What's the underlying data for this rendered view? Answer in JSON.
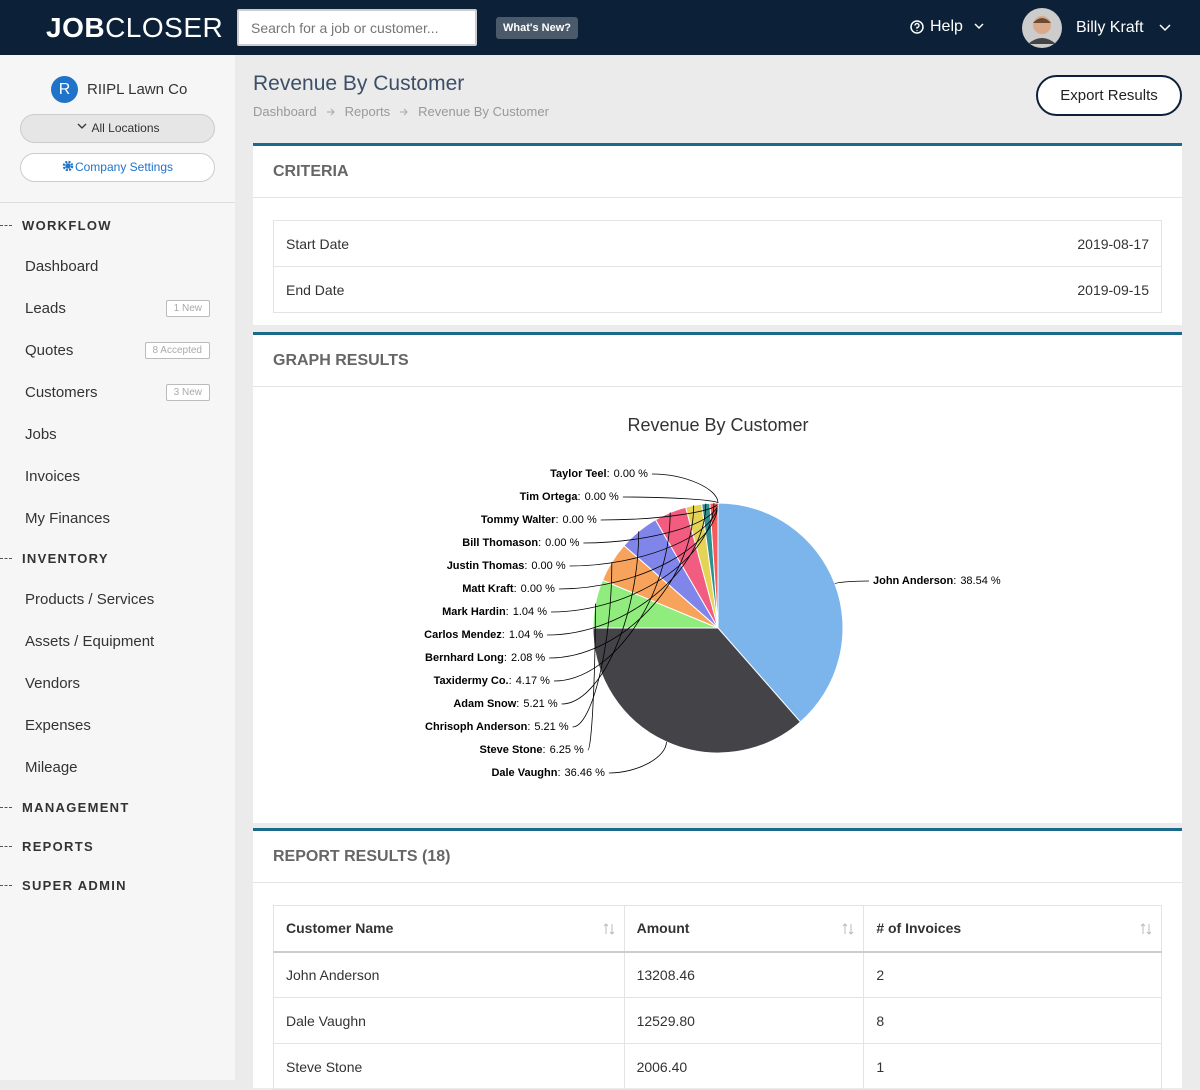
{
  "header": {
    "logo_bold": "JOB",
    "logo_light": "CLOSER",
    "search_placeholder": "Search for a job or customer...",
    "whats_new": "What's New?",
    "help": "Help",
    "user_name": "Billy Kraft"
  },
  "sidebar": {
    "company_initial": "R",
    "company": "RIIPL Lawn Co",
    "locations": "All Locations",
    "settings": "Company Settings",
    "sections": [
      {
        "title": "WORKFLOW",
        "items": [
          {
            "label": "Dashboard"
          },
          {
            "label": "Leads",
            "badge": "1 New"
          },
          {
            "label": "Quotes",
            "badge": "8 Accepted"
          },
          {
            "label": "Customers",
            "badge": "3 New"
          },
          {
            "label": "Jobs"
          },
          {
            "label": "Invoices"
          },
          {
            "label": "My Finances"
          }
        ]
      },
      {
        "title": "INVENTORY",
        "items": [
          {
            "label": "Products / Services"
          },
          {
            "label": "Assets / Equipment"
          },
          {
            "label": "Vendors"
          },
          {
            "label": "Expenses"
          },
          {
            "label": "Mileage"
          }
        ]
      },
      {
        "title": "MANAGEMENT",
        "items": []
      },
      {
        "title": "REPORTS",
        "items": []
      },
      {
        "title": "SUPER ADMIN",
        "items": []
      }
    ]
  },
  "page": {
    "title": "Revenue By Customer",
    "breadcrumbs": [
      "Dashboard",
      "Reports",
      "Revenue By Customer"
    ],
    "export": "Export Results"
  },
  "criteria": {
    "title": "CRITERIA",
    "rows": [
      [
        "Start Date",
        "2019-08-17"
      ],
      [
        "End Date",
        "2019-09-15"
      ]
    ]
  },
  "graph": {
    "title": "GRAPH RESULTS"
  },
  "chart_data": {
    "type": "pie",
    "title": "Revenue By Customer",
    "label_separator": ":",
    "categories": [
      "John Anderson",
      "Dale Vaughn",
      "Steve Stone",
      "Chrisoph Anderson",
      "Adam Snow",
      "Taxidermy Co.",
      "Bernhard Long",
      "Carlos Mendez",
      "Mark Hardin",
      "Matt Kraft",
      "Justin Thomas",
      "Bill Thomason",
      "Tommy Walter",
      "Tim Ortega",
      "Taylor Teel"
    ],
    "values": [
      38.54,
      36.46,
      6.25,
      5.21,
      5.21,
      4.17,
      2.08,
      1.04,
      1.04,
      0,
      0,
      0,
      0,
      0,
      0
    ],
    "value_labels": [
      "38.54 %",
      "36.46 %",
      "6.25 %",
      "5.21 %",
      "5.21 %",
      "4.17 %",
      "2.08 %",
      "1.04 %",
      "1.04 %",
      "0.00 %",
      "0.00 %",
      "0.00 %",
      "0.00 %",
      "0.00 %",
      "0.00 %"
    ],
    "colors": [
      "#7cb5ec",
      "#434348",
      "#90ed7d",
      "#f7a35c",
      "#8085e9",
      "#f15c80",
      "#e4d354",
      "#2b908f",
      "#f45b5b",
      "#91e8e1",
      "#7cb5ec",
      "#434348",
      "#90ed7d",
      "#f7a35c",
      "#8085e9"
    ]
  },
  "report": {
    "title": "REPORT RESULTS (18)",
    "columns": [
      "Customer Name",
      "Amount",
      "# of Invoices"
    ],
    "rows": [
      [
        "John Anderson",
        "13208.46",
        "2"
      ],
      [
        "Dale Vaughn",
        "12529.80",
        "8"
      ],
      [
        "Steve Stone",
        "2006.40",
        "1"
      ]
    ]
  }
}
